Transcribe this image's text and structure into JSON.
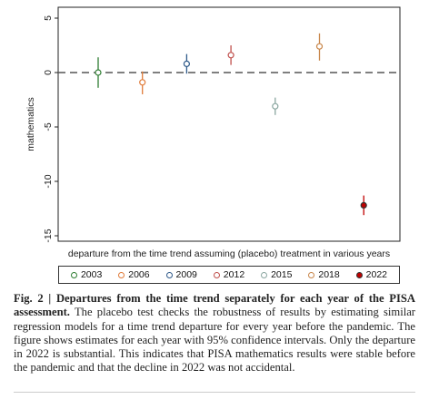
{
  "chart_data": {
    "type": "scatter",
    "subtype": "point-estimates-with-95pct-ci",
    "xlabel": "departure from the time trend assuming (placebo) treatment in various years",
    "ylabel": "mathematics",
    "ylim": [
      -15,
      5
    ],
    "yticks": [
      5,
      0,
      -5,
      -10,
      -15
    ],
    "reference_line": 0,
    "grid": false,
    "legend_position": "bottom",
    "series": [
      {
        "name": "2003",
        "value": 0.0,
        "ci": [
          -1.4,
          1.4
        ],
        "color": "#2e7d32",
        "filled": false
      },
      {
        "name": "2006",
        "value": -0.9,
        "ci": [
          -2.0,
          0.1
        ],
        "color": "#e07b39",
        "filled": false
      },
      {
        "name": "2009",
        "value": 0.8,
        "ci": [
          -0.1,
          1.7
        ],
        "color": "#2f5a8a",
        "filled": false
      },
      {
        "name": "2012",
        "value": 1.6,
        "ci": [
          0.7,
          2.5
        ],
        "color": "#c0504d",
        "filled": false
      },
      {
        "name": "2015",
        "value": -3.1,
        "ci": [
          -3.9,
          -2.3
        ],
        "color": "#8aa6a0",
        "filled": false
      },
      {
        "name": "2018",
        "value": 2.4,
        "ci": [
          1.1,
          3.6
        ],
        "color": "#c8864a",
        "filled": false
      },
      {
        "name": "2022",
        "value": -12.2,
        "ci": [
          -13.1,
          -11.3
        ],
        "color": "#c00000",
        "filled": true
      }
    ]
  },
  "caption": {
    "label": "Fig. 2 | Departures from the time trend separately for each year of the PISA assessment.",
    "text": "The placebo test checks the robustness of results by estimating similar regression models for a time trend departure for every year before the pandemic. The figure shows estimates for each year with 95% confidence intervals. Only the departure in 2022 is substantial. This indicates that PISA mathematics results were stable before the pandemic and that the decline in 2022 was not accidental."
  }
}
